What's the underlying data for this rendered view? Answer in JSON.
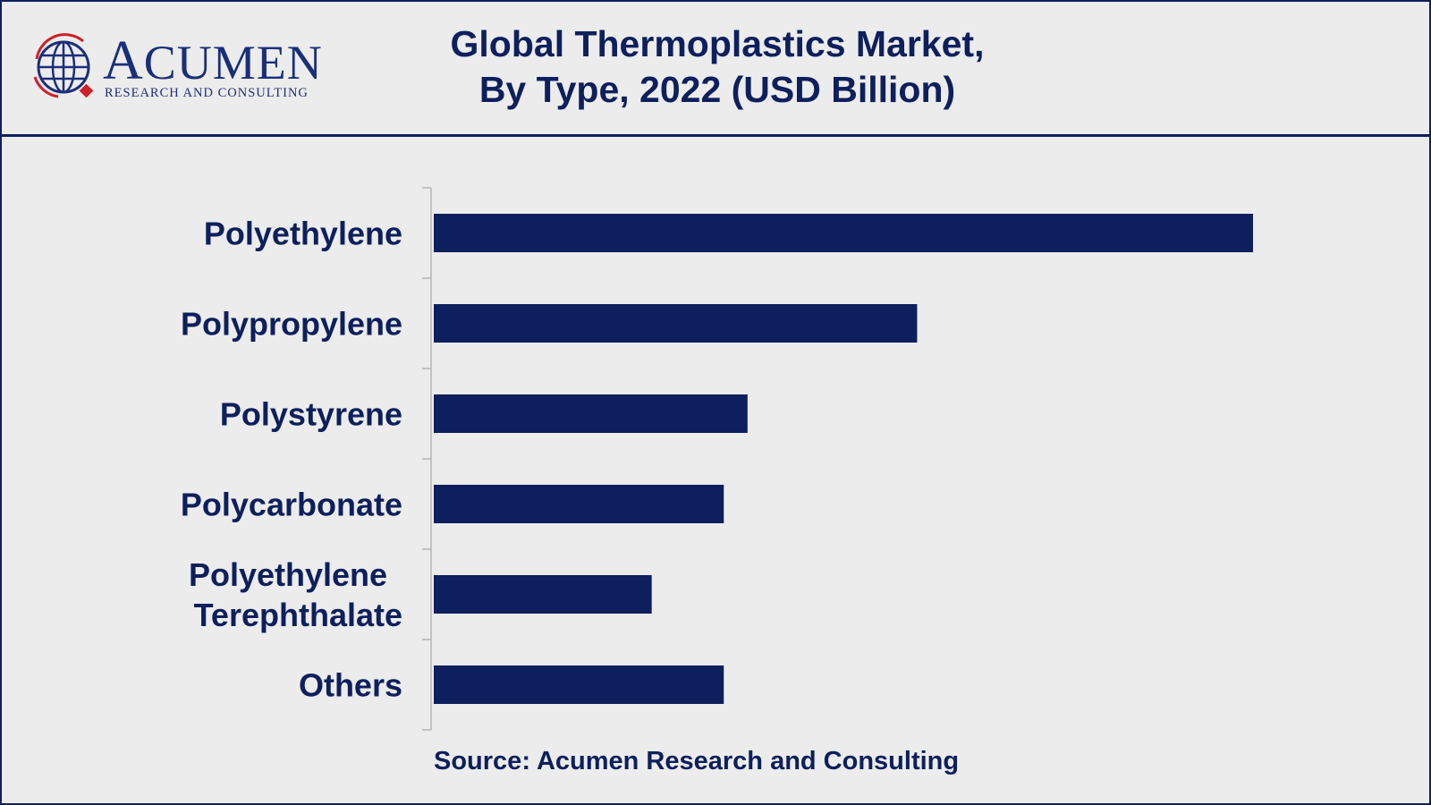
{
  "header": {
    "logo": {
      "name": "ACUMEN",
      "tagline": "RESEARCH AND CONSULTING"
    }
  },
  "chart_data": {
    "type": "bar",
    "orientation": "horizontal",
    "title": [
      "Global Thermoplastics Market,",
      "By Type, 2022 (USD Billion)"
    ],
    "categories": [
      [
        "Polyethylene"
      ],
      [
        "Polypropylene"
      ],
      [
        "Polystyrene"
      ],
      [
        "Polycarbonate"
      ],
      [
        "Polyethylene",
        "Terephthalate"
      ],
      [
        "Others"
      ]
    ],
    "values": [
      100,
      59,
      38.3,
      35.4,
      26.6,
      35.4
    ],
    "xlim": [
      0,
      100
    ],
    "xlabel": "",
    "ylabel": "",
    "grid": false,
    "legend": "none",
    "bar_color": "#0d1f5c",
    "source": "Source: Acumen Research and Consulting"
  }
}
